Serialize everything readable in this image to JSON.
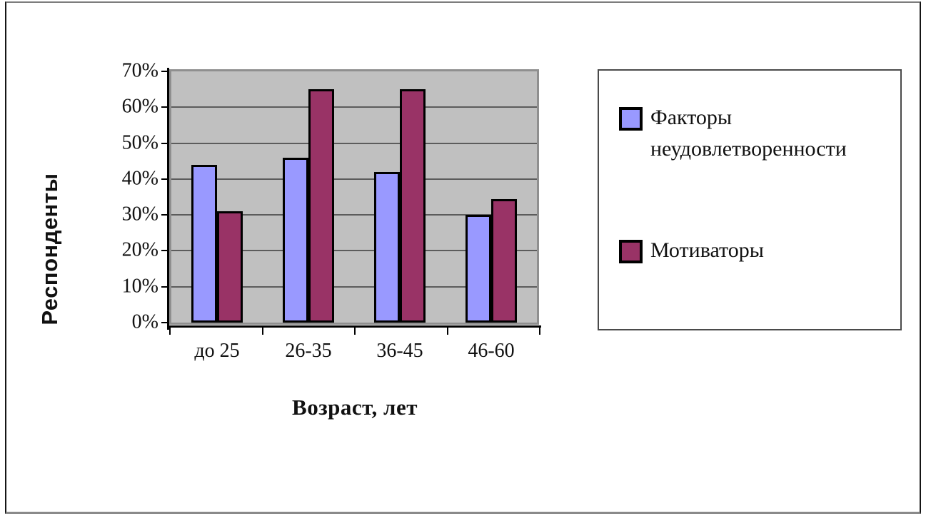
{
  "chart_data": {
    "type": "bar",
    "title": "",
    "categories": [
      "до 25",
      "26-35",
      "36-45",
      "46-60"
    ],
    "series": [
      {
        "name": "Факторы неудовлетворенности",
        "color": "#9999ff",
        "values": [
          44,
          46,
          42,
          30
        ]
      },
      {
        "name": "Мотиваторы",
        "color": "#993366",
        "values": [
          31,
          65,
          65,
          34.5
        ]
      }
    ],
    "xlabel": "Возраст, лет",
    "ylabel": "Респонденты",
    "ylim": [
      0,
      70
    ],
    "ytick_step": 10,
    "ytick_labels": [
      "0%",
      "10%",
      "20%",
      "30%",
      "40%",
      "50%",
      "60%",
      "70%"
    ],
    "grid": true,
    "legend_position": "right",
    "plot_bg_color": "#c0c0c0",
    "gridline_color": "#5c5c5c",
    "axis_color": "#000000"
  }
}
